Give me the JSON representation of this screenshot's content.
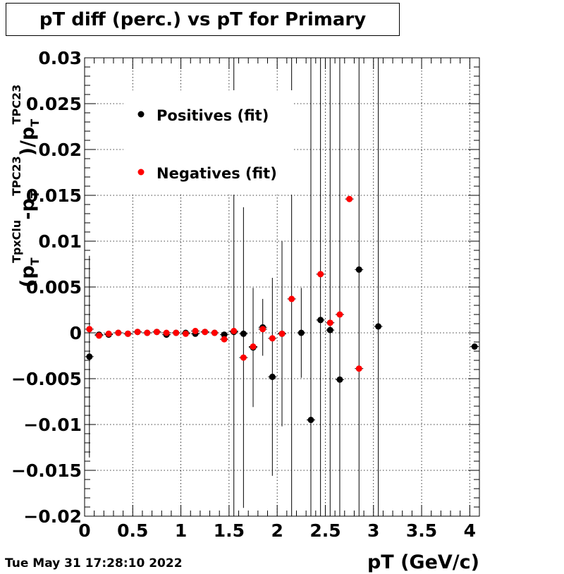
{
  "chart_data": {
    "type": "scatter",
    "title": "pT diff (perc.) vs pT for Primary",
    "xlabel": "pT (GeV/c)",
    "ylabel": {
      "open": "(p",
      "sub1": "T",
      "sup1": "TpxClu",
      "mid": "-p",
      "sub2": "T",
      "sup2": "TPC23",
      "close": ")/p",
      "sub3": "T",
      "sup3": "TPC23"
    },
    "xlim": [
      0,
      4.1
    ],
    "ylim": [
      -0.02,
      0.03
    ],
    "x_ticks": [
      "0",
      "0.5",
      "1",
      "1.5",
      "2",
      "2.5",
      "3",
      "3.5",
      "4"
    ],
    "y_ticks": [
      "−0.02",
      "−0.015",
      "−0.01",
      "−0.005",
      "0",
      "0.005",
      "0.01",
      "0.015",
      "0.02",
      "0.025",
      "0.03"
    ],
    "grid": true,
    "legend_position": "top-left",
    "series": [
      {
        "name": "Positives (fit)",
        "color": "#000000",
        "points": [
          {
            "x": 0.05,
            "y": -0.0026,
            "err": 0.011
          },
          {
            "x": 0.15,
            "y": -0.0002,
            "err": 0.0002
          },
          {
            "x": 0.25,
            "y": -0.0002,
            "err": 0.0002
          },
          {
            "x": 0.35,
            "y": 0.0,
            "err": 0.0002
          },
          {
            "x": 0.45,
            "y": -0.0001,
            "err": 0.0002
          },
          {
            "x": 0.55,
            "y": 0.0001,
            "err": 0.0002
          },
          {
            "x": 0.65,
            "y": 0.0,
            "err": 0.0002
          },
          {
            "x": 0.75,
            "y": 0.0001,
            "err": 0.0002
          },
          {
            "x": 0.85,
            "y": -0.0002,
            "err": 0.0002
          },
          {
            "x": 0.95,
            "y": 0.0,
            "err": 0.0002
          },
          {
            "x": 1.05,
            "y": 0.0,
            "err": 0.0003
          },
          {
            "x": 1.15,
            "y": -0.0001,
            "err": 0.0003
          },
          {
            "x": 1.25,
            "y": 0.0001,
            "err": 0.0003
          },
          {
            "x": 1.35,
            "y": 0.0,
            "err": 0.0003
          },
          {
            "x": 1.45,
            "y": -0.0002,
            "err": 0.0003
          },
          {
            "x": 1.55,
            "y": 0.0001,
            "err": 0.03
          },
          {
            "x": 1.65,
            "y": -0.0001,
            "err": 0.0004
          },
          {
            "x": 1.75,
            "y": -0.0016,
            "err": 0.0065
          },
          {
            "x": 1.85,
            "y": 0.0006,
            "err": 0.0031
          },
          {
            "x": 1.95,
            "y": -0.0048,
            "err": 0.0108
          },
          {
            "x": 2.05,
            "y": -0.0001,
            "err": 0.0101
          },
          {
            "x": 2.25,
            "y": 0.0,
            "err": 0.0049
          },
          {
            "x": 2.35,
            "y": -0.0095,
            "err": 0.04
          },
          {
            "x": 2.45,
            "y": 0.0014,
            "err": 0.04
          },
          {
            "x": 2.55,
            "y": 0.0003,
            "err": 0.04
          },
          {
            "x": 2.65,
            "y": -0.0051,
            "err": 0.04
          },
          {
            "x": 2.85,
            "y": 0.0069,
            "err": 0.04
          },
          {
            "x": 3.05,
            "y": 0.0007,
            "err": 0.04
          },
          {
            "x": 4.05,
            "y": -0.0015,
            "err": 0.0
          }
        ]
      },
      {
        "name": "Negatives (fit)",
        "color": "#ff0000",
        "points": [
          {
            "x": 0.05,
            "y": 0.0004,
            "err": 0.0
          },
          {
            "x": 0.15,
            "y": -0.0003,
            "err": 0.0
          },
          {
            "x": 0.25,
            "y": -0.0001,
            "err": 0.0
          },
          {
            "x": 0.35,
            "y": 0.0,
            "err": 0.0
          },
          {
            "x": 0.45,
            "y": -0.0001,
            "err": 0.0
          },
          {
            "x": 0.55,
            "y": 0.0001,
            "err": 0.0
          },
          {
            "x": 0.65,
            "y": 0.0,
            "err": 0.0
          },
          {
            "x": 0.75,
            "y": 0.0001,
            "err": 0.0
          },
          {
            "x": 0.85,
            "y": 0.0,
            "err": 0.0
          },
          {
            "x": 0.95,
            "y": 0.0,
            "err": 0.0
          },
          {
            "x": 1.05,
            "y": -0.0001,
            "err": 0.0
          },
          {
            "x": 1.15,
            "y": 0.0002,
            "err": 0.0
          },
          {
            "x": 1.25,
            "y": 0.0001,
            "err": 0.0
          },
          {
            "x": 1.35,
            "y": 0.0,
            "err": 0.0
          },
          {
            "x": 1.45,
            "y": -0.0007,
            "err": 0.0
          },
          {
            "x": 1.55,
            "y": 0.0002,
            "err": 0.0
          },
          {
            "x": 1.65,
            "y": -0.0027,
            "err": 0.0164
          },
          {
            "x": 1.75,
            "y": -0.0015,
            "err": 0.0
          },
          {
            "x": 1.85,
            "y": 0.0004,
            "err": 0.0
          },
          {
            "x": 1.95,
            "y": -0.0006,
            "err": 0.0
          },
          {
            "x": 2.05,
            "y": -0.0001,
            "err": 0.0
          },
          {
            "x": 2.15,
            "y": 0.0037,
            "err": 0.04
          },
          {
            "x": 2.45,
            "y": 0.0064,
            "err": 0.0
          },
          {
            "x": 2.55,
            "y": 0.0011,
            "err": 0.0
          },
          {
            "x": 2.65,
            "y": 0.002,
            "err": 0.0
          },
          {
            "x": 2.75,
            "y": 0.0146,
            "err": 0.0
          },
          {
            "x": 2.85,
            "y": -0.0039,
            "err": 0.0
          }
        ]
      }
    ]
  },
  "footer": {
    "timestamp": "Tue May 31 17:28:10 2022"
  }
}
